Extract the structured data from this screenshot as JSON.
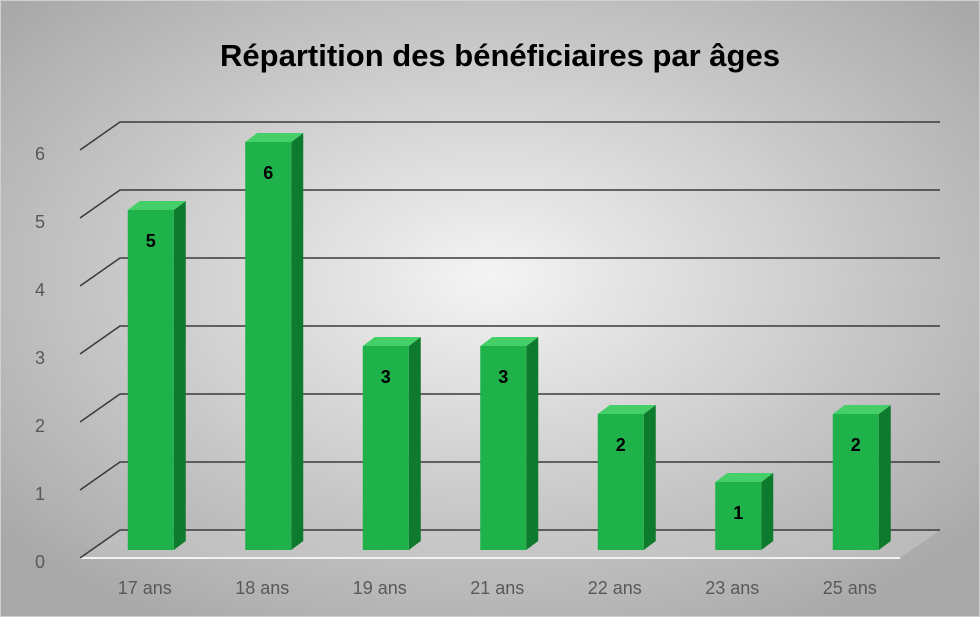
{
  "chart_data": {
    "type": "bar",
    "title": "Répartition des bénéficiaires par âges",
    "categories": [
      "17 ans",
      "18 ans",
      "19 ans",
      "21 ans",
      "22 ans",
      "23 ans",
      "25 ans"
    ],
    "values": [
      5,
      6,
      3,
      3,
      2,
      1,
      2
    ],
    "color": "#1fb24a",
    "ylim": [
      0,
      6
    ],
    "yticks": [
      0,
      1,
      2,
      3,
      4,
      5,
      6
    ],
    "grid": true
  }
}
